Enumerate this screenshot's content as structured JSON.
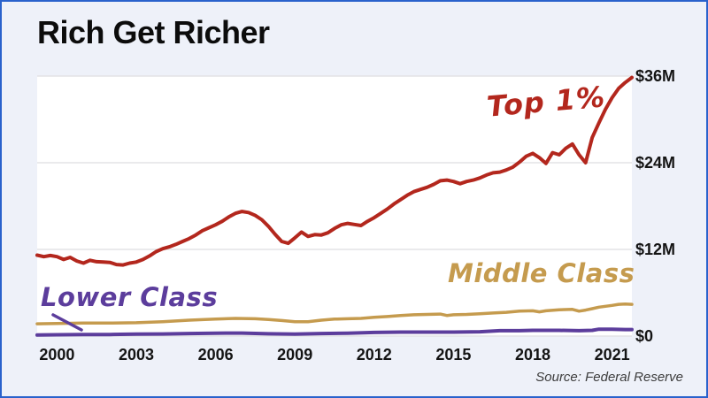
{
  "frame": {
    "background": "#eef1f9",
    "border_color": "#2a62cc"
  },
  "header": {
    "title": "Rich Get Richer"
  },
  "footer": {
    "source": "Source: Federal Reserve"
  },
  "chart_data": {
    "type": "line",
    "title": "Rich Get Richer",
    "source": "Source: Federal Reserve",
    "xlabel": "",
    "ylabel": "",
    "xlim": [
      1999.25,
      2021.75
    ],
    "ylim": [
      0,
      36
    ],
    "grid": true,
    "legend_position": "inline-annotations",
    "x_ticks": [
      2000,
      2003,
      2006,
      2009,
      2012,
      2015,
      2018,
      2021
    ],
    "y_ticks": [
      {
        "value": 0,
        "label": "$0"
      },
      {
        "value": 12,
        "label": "$12M"
      },
      {
        "value": 24,
        "label": "$24M"
      },
      {
        "value": 36,
        "label": "$36M"
      }
    ],
    "series": [
      {
        "name": "Top 1%",
        "color": "#b3271d",
        "points": [
          [
            1999.25,
            11.2
          ],
          [
            1999.5,
            11.0
          ],
          [
            1999.75,
            11.15
          ],
          [
            2000,
            11.0
          ],
          [
            2000.25,
            10.6
          ],
          [
            2000.5,
            10.9
          ],
          [
            2000.75,
            10.4
          ],
          [
            2001,
            10.1
          ],
          [
            2001.25,
            10.5
          ],
          [
            2001.5,
            10.3
          ],
          [
            2001.75,
            10.25
          ],
          [
            2002,
            10.2
          ],
          [
            2002.25,
            9.9
          ],
          [
            2002.5,
            9.85
          ],
          [
            2002.75,
            10.1
          ],
          [
            2003,
            10.25
          ],
          [
            2003.25,
            10.6
          ],
          [
            2003.5,
            11.1
          ],
          [
            2003.75,
            11.7
          ],
          [
            2004,
            12.1
          ],
          [
            2004.25,
            12.35
          ],
          [
            2004.5,
            12.7
          ],
          [
            2004.75,
            13.1
          ],
          [
            2005,
            13.5
          ],
          [
            2005.25,
            14.0
          ],
          [
            2005.5,
            14.6
          ],
          [
            2005.75,
            15.0
          ],
          [
            2006,
            15.4
          ],
          [
            2006.25,
            15.9
          ],
          [
            2006.5,
            16.5
          ],
          [
            2006.75,
            17.0
          ],
          [
            2007,
            17.25
          ],
          [
            2007.25,
            17.1
          ],
          [
            2007.5,
            16.7
          ],
          [
            2007.75,
            16.1
          ],
          [
            2008,
            15.2
          ],
          [
            2008.25,
            14.1
          ],
          [
            2008.5,
            13.1
          ],
          [
            2008.75,
            12.85
          ],
          [
            2009,
            13.6
          ],
          [
            2009.25,
            14.4
          ],
          [
            2009.5,
            13.8
          ],
          [
            2009.75,
            14.05
          ],
          [
            2010,
            14.0
          ],
          [
            2010.25,
            14.3
          ],
          [
            2010.5,
            14.9
          ],
          [
            2010.75,
            15.4
          ],
          [
            2011,
            15.6
          ],
          [
            2011.25,
            15.45
          ],
          [
            2011.5,
            15.3
          ],
          [
            2011.75,
            15.9
          ],
          [
            2012,
            16.4
          ],
          [
            2012.25,
            17.0
          ],
          [
            2012.5,
            17.6
          ],
          [
            2012.75,
            18.3
          ],
          [
            2013,
            18.9
          ],
          [
            2013.25,
            19.5
          ],
          [
            2013.5,
            20.0
          ],
          [
            2013.75,
            20.3
          ],
          [
            2014,
            20.6
          ],
          [
            2014.25,
            21.0
          ],
          [
            2014.5,
            21.5
          ],
          [
            2014.75,
            21.6
          ],
          [
            2015,
            21.4
          ],
          [
            2015.25,
            21.1
          ],
          [
            2015.5,
            21.4
          ],
          [
            2015.75,
            21.6
          ],
          [
            2016,
            21.9
          ],
          [
            2016.25,
            22.3
          ],
          [
            2016.5,
            22.6
          ],
          [
            2016.75,
            22.7
          ],
          [
            2017,
            23.0
          ],
          [
            2017.25,
            23.4
          ],
          [
            2017.5,
            24.1
          ],
          [
            2017.75,
            24.9
          ],
          [
            2018,
            25.3
          ],
          [
            2018.25,
            24.7
          ],
          [
            2018.5,
            23.9
          ],
          [
            2018.75,
            25.4
          ],
          [
            2019,
            25.1
          ],
          [
            2019.25,
            26.0
          ],
          [
            2019.5,
            26.6
          ],
          [
            2019.75,
            25.1
          ],
          [
            2020,
            24.0
          ],
          [
            2020.25,
            27.5
          ],
          [
            2020.5,
            29.5
          ],
          [
            2020.75,
            31.4
          ],
          [
            2021,
            33.0
          ],
          [
            2021.25,
            34.3
          ],
          [
            2021.5,
            35.1
          ],
          [
            2021.75,
            35.8
          ]
        ]
      },
      {
        "name": "Middle Class",
        "color": "#c59b4e",
        "points": [
          [
            1999.25,
            1.7
          ],
          [
            2000,
            1.75
          ],
          [
            2001,
            1.8
          ],
          [
            2002,
            1.8
          ],
          [
            2003,
            1.85
          ],
          [
            2004,
            2.0
          ],
          [
            2005,
            2.2
          ],
          [
            2006,
            2.35
          ],
          [
            2006.75,
            2.45
          ],
          [
            2007.5,
            2.4
          ],
          [
            2008,
            2.3
          ],
          [
            2008.5,
            2.15
          ],
          [
            2009,
            2.0
          ],
          [
            2009.5,
            2.0
          ],
          [
            2010,
            2.2
          ],
          [
            2010.5,
            2.35
          ],
          [
            2011,
            2.4
          ],
          [
            2011.5,
            2.45
          ],
          [
            2012,
            2.6
          ],
          [
            2012.5,
            2.7
          ],
          [
            2013,
            2.85
          ],
          [
            2013.5,
            2.95
          ],
          [
            2014,
            3.0
          ],
          [
            2014.5,
            3.05
          ],
          [
            2014.75,
            2.85
          ],
          [
            2015,
            2.95
          ],
          [
            2015.5,
            3.0
          ],
          [
            2016,
            3.1
          ],
          [
            2016.5,
            3.2
          ],
          [
            2017,
            3.3
          ],
          [
            2017.5,
            3.45
          ],
          [
            2018,
            3.5
          ],
          [
            2018.25,
            3.35
          ],
          [
            2018.5,
            3.5
          ],
          [
            2019,
            3.65
          ],
          [
            2019.5,
            3.7
          ],
          [
            2019.75,
            3.45
          ],
          [
            2020,
            3.6
          ],
          [
            2020.25,
            3.8
          ],
          [
            2020.5,
            4.0
          ],
          [
            2021,
            4.25
          ],
          [
            2021.25,
            4.4
          ],
          [
            2021.5,
            4.45
          ],
          [
            2021.75,
            4.4
          ]
        ]
      },
      {
        "name": "Lower Class",
        "color": "#5c3d9c",
        "points": [
          [
            1999.25,
            0.15
          ],
          [
            2000,
            0.18
          ],
          [
            2001,
            0.22
          ],
          [
            2002,
            0.22
          ],
          [
            2003,
            0.28
          ],
          [
            2004,
            0.3
          ],
          [
            2005,
            0.35
          ],
          [
            2006,
            0.4
          ],
          [
            2007,
            0.42
          ],
          [
            2008,
            0.32
          ],
          [
            2009,
            0.28
          ],
          [
            2010,
            0.35
          ],
          [
            2011,
            0.4
          ],
          [
            2012,
            0.5
          ],
          [
            2013,
            0.55
          ],
          [
            2014,
            0.55
          ],
          [
            2015,
            0.55
          ],
          [
            2016,
            0.6
          ],
          [
            2016.75,
            0.75
          ],
          [
            2017.5,
            0.75
          ],
          [
            2018,
            0.8
          ],
          [
            2019,
            0.8
          ],
          [
            2019.75,
            0.75
          ],
          [
            2020.25,
            0.8
          ],
          [
            2020.5,
            0.95
          ],
          [
            2021,
            0.95
          ],
          [
            2021.5,
            0.9
          ],
          [
            2021.75,
            0.9
          ]
        ]
      }
    ],
    "annotations": [
      {
        "text": "Top 1%",
        "color": "#b3271d"
      },
      {
        "text": "Middle Class",
        "color": "#c59b4e"
      },
      {
        "text": "Lower Class",
        "color": "#5c3d9c",
        "pointer_line": true
      }
    ]
  }
}
